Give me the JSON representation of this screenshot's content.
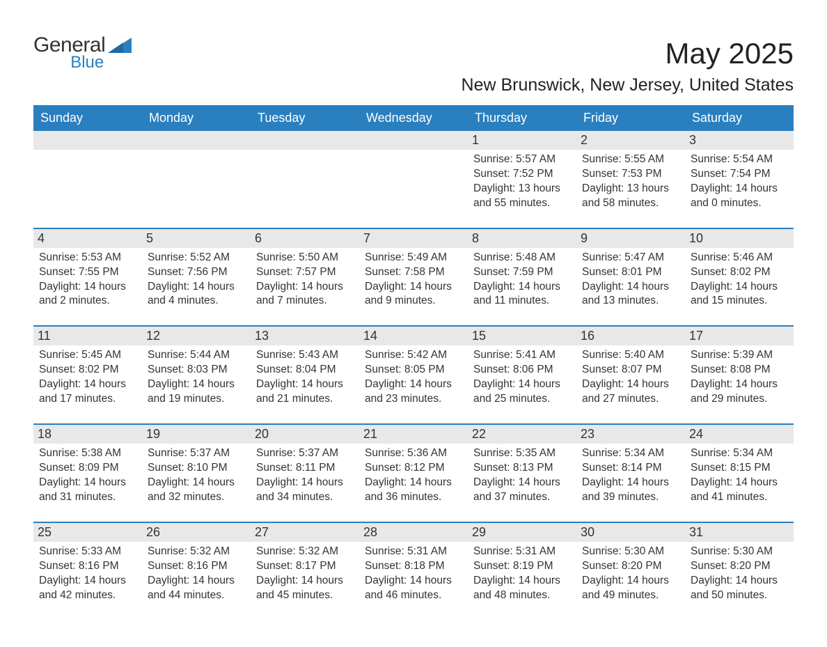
{
  "brand": {
    "name_part1": "General",
    "name_part2": "Blue",
    "logo_color": "#2a7fbf"
  },
  "header": {
    "title": "May 2025",
    "location": "New Brunswick, New Jersey, United States"
  },
  "theme": {
    "header_bg": "#2a7fbf",
    "header_text": "#ffffff",
    "daynum_bg": "#e8e8e8",
    "cell_border": "#2a7fbf",
    "body_text": "#333333",
    "background": "#ffffff"
  },
  "weekdays": [
    "Sunday",
    "Monday",
    "Tuesday",
    "Wednesday",
    "Thursday",
    "Friday",
    "Saturday"
  ],
  "weeks": [
    [
      null,
      null,
      null,
      null,
      {
        "day": "1",
        "sunrise": "Sunrise: 5:57 AM",
        "sunset": "Sunset: 7:52 PM",
        "daylight1": "Daylight: 13 hours",
        "daylight2": "and 55 minutes."
      },
      {
        "day": "2",
        "sunrise": "Sunrise: 5:55 AM",
        "sunset": "Sunset: 7:53 PM",
        "daylight1": "Daylight: 13 hours",
        "daylight2": "and 58 minutes."
      },
      {
        "day": "3",
        "sunrise": "Sunrise: 5:54 AM",
        "sunset": "Sunset: 7:54 PM",
        "daylight1": "Daylight: 14 hours",
        "daylight2": "and 0 minutes."
      }
    ],
    [
      {
        "day": "4",
        "sunrise": "Sunrise: 5:53 AM",
        "sunset": "Sunset: 7:55 PM",
        "daylight1": "Daylight: 14 hours",
        "daylight2": "and 2 minutes."
      },
      {
        "day": "5",
        "sunrise": "Sunrise: 5:52 AM",
        "sunset": "Sunset: 7:56 PM",
        "daylight1": "Daylight: 14 hours",
        "daylight2": "and 4 minutes."
      },
      {
        "day": "6",
        "sunrise": "Sunrise: 5:50 AM",
        "sunset": "Sunset: 7:57 PM",
        "daylight1": "Daylight: 14 hours",
        "daylight2": "and 7 minutes."
      },
      {
        "day": "7",
        "sunrise": "Sunrise: 5:49 AM",
        "sunset": "Sunset: 7:58 PM",
        "daylight1": "Daylight: 14 hours",
        "daylight2": "and 9 minutes."
      },
      {
        "day": "8",
        "sunrise": "Sunrise: 5:48 AM",
        "sunset": "Sunset: 7:59 PM",
        "daylight1": "Daylight: 14 hours",
        "daylight2": "and 11 minutes."
      },
      {
        "day": "9",
        "sunrise": "Sunrise: 5:47 AM",
        "sunset": "Sunset: 8:01 PM",
        "daylight1": "Daylight: 14 hours",
        "daylight2": "and 13 minutes."
      },
      {
        "day": "10",
        "sunrise": "Sunrise: 5:46 AM",
        "sunset": "Sunset: 8:02 PM",
        "daylight1": "Daylight: 14 hours",
        "daylight2": "and 15 minutes."
      }
    ],
    [
      {
        "day": "11",
        "sunrise": "Sunrise: 5:45 AM",
        "sunset": "Sunset: 8:02 PM",
        "daylight1": "Daylight: 14 hours",
        "daylight2": "and 17 minutes."
      },
      {
        "day": "12",
        "sunrise": "Sunrise: 5:44 AM",
        "sunset": "Sunset: 8:03 PM",
        "daylight1": "Daylight: 14 hours",
        "daylight2": "and 19 minutes."
      },
      {
        "day": "13",
        "sunrise": "Sunrise: 5:43 AM",
        "sunset": "Sunset: 8:04 PM",
        "daylight1": "Daylight: 14 hours",
        "daylight2": "and 21 minutes."
      },
      {
        "day": "14",
        "sunrise": "Sunrise: 5:42 AM",
        "sunset": "Sunset: 8:05 PM",
        "daylight1": "Daylight: 14 hours",
        "daylight2": "and 23 minutes."
      },
      {
        "day": "15",
        "sunrise": "Sunrise: 5:41 AM",
        "sunset": "Sunset: 8:06 PM",
        "daylight1": "Daylight: 14 hours",
        "daylight2": "and 25 minutes."
      },
      {
        "day": "16",
        "sunrise": "Sunrise: 5:40 AM",
        "sunset": "Sunset: 8:07 PM",
        "daylight1": "Daylight: 14 hours",
        "daylight2": "and 27 minutes."
      },
      {
        "day": "17",
        "sunrise": "Sunrise: 5:39 AM",
        "sunset": "Sunset: 8:08 PM",
        "daylight1": "Daylight: 14 hours",
        "daylight2": "and 29 minutes."
      }
    ],
    [
      {
        "day": "18",
        "sunrise": "Sunrise: 5:38 AM",
        "sunset": "Sunset: 8:09 PM",
        "daylight1": "Daylight: 14 hours",
        "daylight2": "and 31 minutes."
      },
      {
        "day": "19",
        "sunrise": "Sunrise: 5:37 AM",
        "sunset": "Sunset: 8:10 PM",
        "daylight1": "Daylight: 14 hours",
        "daylight2": "and 32 minutes."
      },
      {
        "day": "20",
        "sunrise": "Sunrise: 5:37 AM",
        "sunset": "Sunset: 8:11 PM",
        "daylight1": "Daylight: 14 hours",
        "daylight2": "and 34 minutes."
      },
      {
        "day": "21",
        "sunrise": "Sunrise: 5:36 AM",
        "sunset": "Sunset: 8:12 PM",
        "daylight1": "Daylight: 14 hours",
        "daylight2": "and 36 minutes."
      },
      {
        "day": "22",
        "sunrise": "Sunrise: 5:35 AM",
        "sunset": "Sunset: 8:13 PM",
        "daylight1": "Daylight: 14 hours",
        "daylight2": "and 37 minutes."
      },
      {
        "day": "23",
        "sunrise": "Sunrise: 5:34 AM",
        "sunset": "Sunset: 8:14 PM",
        "daylight1": "Daylight: 14 hours",
        "daylight2": "and 39 minutes."
      },
      {
        "day": "24",
        "sunrise": "Sunrise: 5:34 AM",
        "sunset": "Sunset: 8:15 PM",
        "daylight1": "Daylight: 14 hours",
        "daylight2": "and 41 minutes."
      }
    ],
    [
      {
        "day": "25",
        "sunrise": "Sunrise: 5:33 AM",
        "sunset": "Sunset: 8:16 PM",
        "daylight1": "Daylight: 14 hours",
        "daylight2": "and 42 minutes."
      },
      {
        "day": "26",
        "sunrise": "Sunrise: 5:32 AM",
        "sunset": "Sunset: 8:16 PM",
        "daylight1": "Daylight: 14 hours",
        "daylight2": "and 44 minutes."
      },
      {
        "day": "27",
        "sunrise": "Sunrise: 5:32 AM",
        "sunset": "Sunset: 8:17 PM",
        "daylight1": "Daylight: 14 hours",
        "daylight2": "and 45 minutes."
      },
      {
        "day": "28",
        "sunrise": "Sunrise: 5:31 AM",
        "sunset": "Sunset: 8:18 PM",
        "daylight1": "Daylight: 14 hours",
        "daylight2": "and 46 minutes."
      },
      {
        "day": "29",
        "sunrise": "Sunrise: 5:31 AM",
        "sunset": "Sunset: 8:19 PM",
        "daylight1": "Daylight: 14 hours",
        "daylight2": "and 48 minutes."
      },
      {
        "day": "30",
        "sunrise": "Sunrise: 5:30 AM",
        "sunset": "Sunset: 8:20 PM",
        "daylight1": "Daylight: 14 hours",
        "daylight2": "and 49 minutes."
      },
      {
        "day": "31",
        "sunrise": "Sunrise: 5:30 AM",
        "sunset": "Sunset: 8:20 PM",
        "daylight1": "Daylight: 14 hours",
        "daylight2": "and 50 minutes."
      }
    ]
  ]
}
